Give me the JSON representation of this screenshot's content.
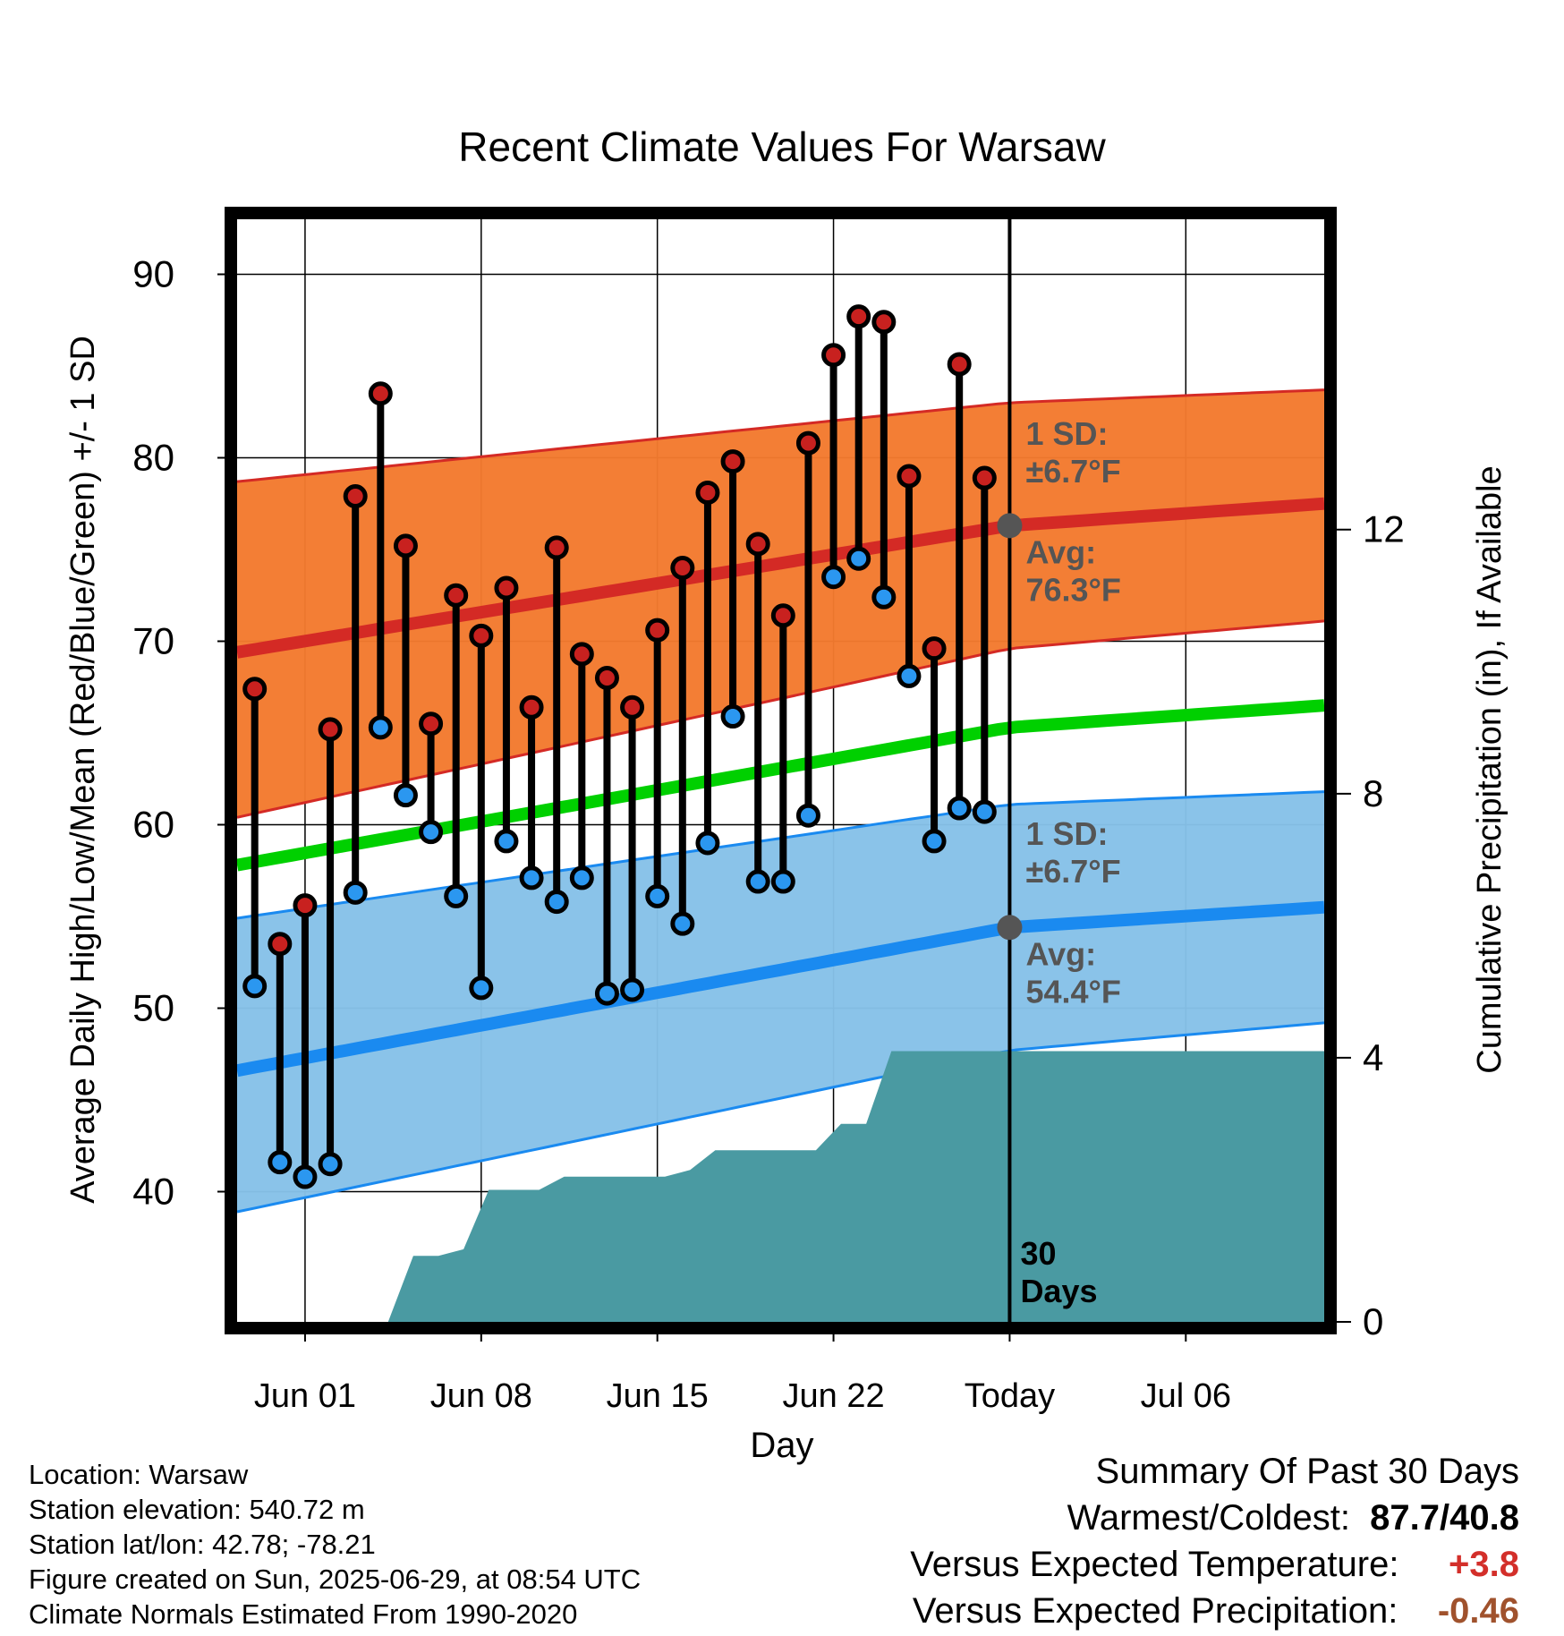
{
  "chart_data": {
    "type": "line",
    "title": "Recent Climate Values For Warsaw",
    "xlabel": "Day",
    "ylabel": "Average Daily High/Low/Mean (Red/Blue/Green) +/- 1 SD",
    "y2label": "Cumulative Precipitation (in), If Available",
    "xlim": [
      -2.7,
      40.5
    ],
    "ylim": [
      32.9,
      93
    ],
    "y2lim": [
      0,
      16.7
    ],
    "xticks": [
      {
        "pos": 0,
        "label": "Jun 01"
      },
      {
        "pos": 7,
        "label": "Jun 08"
      },
      {
        "pos": 14,
        "label": "Jun 15"
      },
      {
        "pos": 21,
        "label": "Jun 22"
      },
      {
        "pos": 28,
        "label": "Today"
      },
      {
        "pos": 35,
        "label": "Jul 06"
      }
    ],
    "yticks": [
      40,
      50,
      60,
      70,
      80,
      90
    ],
    "y2ticks": [
      0,
      4,
      8,
      12
    ],
    "grid": true,
    "today_x": 28,
    "today_marker": {
      "text_line1": "30",
      "text_line2": "Days"
    },
    "normals": {
      "x": [
        -2.7,
        28,
        40.5
      ],
      "high_mean": [
        69.4,
        76.3,
        77.5
      ],
      "high_upper": [
        78.7,
        83.0,
        83.7
      ],
      "high_lower": [
        60.4,
        69.6,
        71.1
      ],
      "mean": [
        57.8,
        65.3,
        66.5
      ],
      "low_mean": [
        46.6,
        54.4,
        55.5
      ],
      "low_upper": [
        54.9,
        61.1,
        61.8
      ],
      "low_lower": [
        38.9,
        47.7,
        49.2
      ]
    },
    "high_annotation": {
      "sd_label": "1 SD:",
      "sd_value": "±6.7°F",
      "avg_label": "Avg:",
      "avg_value": "76.3°F",
      "avg": 76.3
    },
    "low_annotation": {
      "sd_label": "1 SD:",
      "sd_value": "±6.7°F",
      "avg_label": "Avg:",
      "avg_value": "54.4°F",
      "avg": 54.4
    },
    "series": [
      {
        "name": "High",
        "x": [
          -2,
          -1,
          0,
          1,
          2,
          3,
          4,
          5,
          6,
          7,
          8,
          9,
          10,
          11,
          12,
          13,
          14,
          15,
          16,
          17,
          18,
          19,
          20,
          21,
          22,
          23,
          24,
          25,
          26,
          27
        ],
        "values": [
          67.4,
          53.5,
          55.6,
          65.2,
          77.9,
          83.5,
          75.2,
          65.5,
          72.5,
          70.3,
          72.9,
          66.4,
          75.1,
          69.3,
          68.0,
          66.4,
          70.6,
          74.0,
          78.1,
          79.8,
          75.3,
          71.4,
          80.8,
          85.6,
          87.7,
          87.4,
          79.0,
          69.6,
          85.1,
          78.9
        ]
      },
      {
        "name": "Low",
        "x": [
          -2,
          -1,
          0,
          1,
          2,
          3,
          4,
          5,
          6,
          7,
          8,
          9,
          10,
          11,
          12,
          13,
          14,
          15,
          16,
          17,
          18,
          19,
          20,
          21,
          22,
          23,
          24,
          25,
          26,
          27
        ],
        "values": [
          51.2,
          41.6,
          40.8,
          41.5,
          56.3,
          65.3,
          61.6,
          59.6,
          56.1,
          51.1,
          59.1,
          57.1,
          55.8,
          57.1,
          50.8,
          51.0,
          56.1,
          54.6,
          59.0,
          65.9,
          56.9,
          56.9,
          60.5,
          73.5,
          74.5,
          72.4,
          68.1,
          59.1,
          60.9,
          60.7
        ]
      },
      {
        "name": "Precipitation",
        "x": [
          3.3,
          4.3,
          5.3,
          6.3,
          7.3,
          8.3,
          9.3,
          10.3,
          11.3,
          12.3,
          13.3,
          14.3,
          15.3,
          16.3,
          17.3,
          18.3,
          19.3,
          20.3,
          21.3,
          22.3,
          23.3,
          24.3,
          25.3,
          26.3,
          27.3,
          40.5
        ],
        "values": [
          0,
          1.0,
          1.0,
          1.1,
          2.0,
          2.0,
          2.0,
          2.2,
          2.2,
          2.2,
          2.2,
          2.2,
          2.3,
          2.6,
          2.6,
          2.6,
          2.6,
          2.6,
          3.0,
          3.0,
          4.1,
          4.1,
          4.1,
          4.1,
          4.1,
          4.1
        ]
      }
    ]
  },
  "info": {
    "location": "Location: Warsaw",
    "elevation": "Station elevation: 540.72 m",
    "latlon": "Station lat/lon: 42.78; -78.21",
    "created": "Figure created on Sun, 2025-06-29, at 08:54 UTC",
    "normals": "Climate Normals Estimated From 1990-2020"
  },
  "summary": {
    "title": "Summary Of Past 30 Days",
    "warm_cold_label": "Warmest/Coldest:",
    "warm_cold_value": "87.7/40.8",
    "temp_label": "Versus Expected Temperature:",
    "temp_value": "+3.8",
    "precip_label": "Versus Expected Precipitation:",
    "precip_value": "-0.46"
  },
  "colors": {
    "high_band": "#f37a2e",
    "high_line": "#d42a25",
    "low_band": "#86c1e8",
    "low_line": "#1a8af0",
    "mean_line": "#00d000",
    "precip": "#4a9aa2",
    "high_dot": "#c8211f",
    "low_dot": "#2b97f0",
    "annotation": "#555555",
    "temp_value": "#d32f2a",
    "precip_value": "#a0522d"
  }
}
